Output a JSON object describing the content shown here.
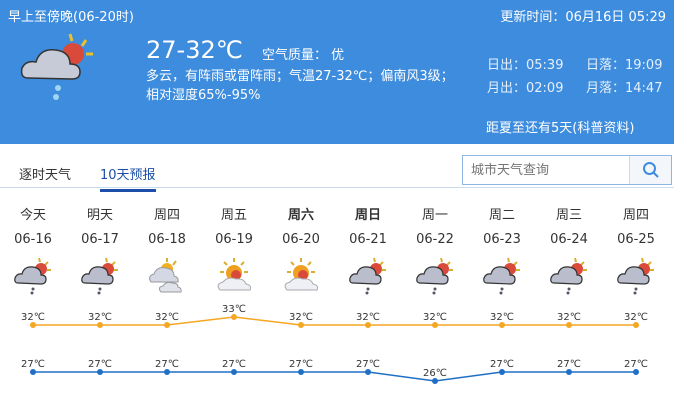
{
  "header": {
    "period": "早上至傍晚(06-20时)",
    "update_time": "更新时间：06月16日 05:29",
    "temp": "27-32℃",
    "air_quality": "空气质量： 优",
    "desc1": "多云，有阵雨或雷阵雨；气温27-32℃；偏南风3级；",
    "desc2": "相对湿度65%-95%",
    "sunrise": "日出：05:39",
    "sunset": "日落：19:09",
    "moonrise": "月出：02:09",
    "moonset": "月落：14:47",
    "note": "距夏至还有5天(科普资料)",
    "icon": "cloud-sun-rain-icon"
  },
  "tabs": [
    {
      "label": "逐时天气"
    },
    {
      "label": "10天预报",
      "active": true
    }
  ],
  "search": {
    "placeholder": "城市天气查询"
  },
  "colors": {
    "header": "#3d8cdd",
    "high": "#f5a623",
    "low": "#1f6fc5"
  },
  "days": [
    {
      "week": "今天",
      "date": "06-16",
      "icon": "cloud-sun-rain-icon",
      "high": "32℃",
      "low": "27℃"
    },
    {
      "week": "明天",
      "date": "06-17",
      "icon": "cloud-sun-rain-icon",
      "high": "32℃",
      "low": "27℃"
    },
    {
      "week": "周四",
      "date": "06-18",
      "icon": "cloudy-icon",
      "high": "32℃",
      "low": "27℃"
    },
    {
      "week": "周五",
      "date": "06-19",
      "icon": "partly-cloudy-icon",
      "high": "33℃",
      "low": "27℃"
    },
    {
      "week": "周六",
      "date": "06-20",
      "icon": "partly-cloudy-icon",
      "high": "32℃",
      "low": "27℃",
      "bold": true
    },
    {
      "week": "周日",
      "date": "06-21",
      "icon": "cloud-sun-rain-icon",
      "high": "32℃",
      "low": "27℃",
      "bold": true
    },
    {
      "week": "周一",
      "date": "06-22",
      "icon": "cloud-sun-rain-icon",
      "high": "32℃",
      "low": "26℃"
    },
    {
      "week": "周二",
      "date": "06-23",
      "icon": "cloud-sun-rain-icon",
      "high": "32℃",
      "low": "27℃"
    },
    {
      "week": "周三",
      "date": "06-24",
      "icon": "cloud-sun-rain-icon",
      "high": "32℃",
      "low": "27℃"
    },
    {
      "week": "周四",
      "date": "06-25",
      "icon": "cloud-sun-rain-icon",
      "high": "32℃",
      "low": "27℃"
    }
  ],
  "chart_data": {
    "type": "line",
    "categories": [
      "06-16",
      "06-17",
      "06-18",
      "06-19",
      "06-20",
      "06-21",
      "06-22",
      "06-23",
      "06-24",
      "06-25"
    ],
    "series": [
      {
        "values": [
          32,
          32,
          32,
          33,
          32,
          32,
          32,
          32,
          32,
          32
        ]
      },
      {
        "values": [
          27,
          27,
          27,
          27,
          27,
          27,
          26,
          27,
          27,
          27
        ]
      }
    ]
  }
}
